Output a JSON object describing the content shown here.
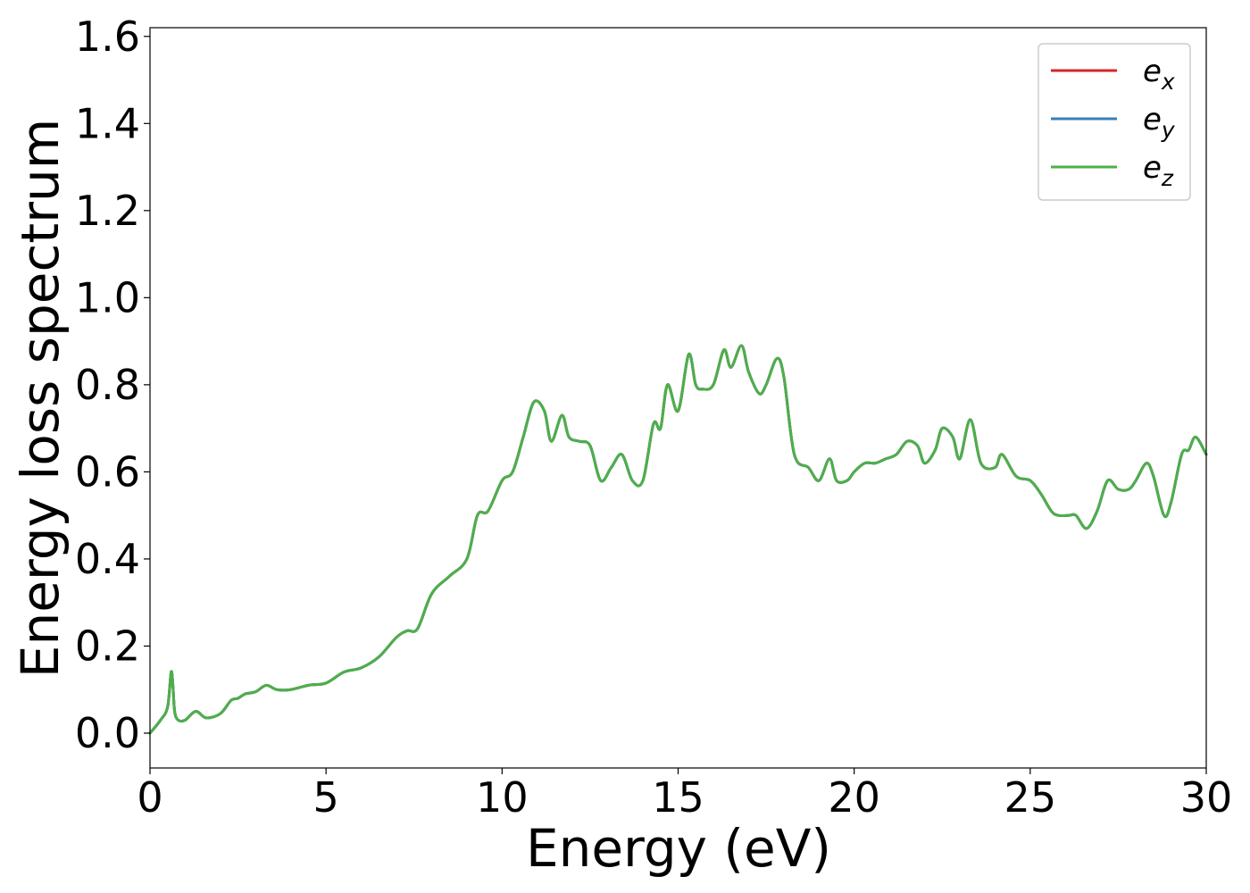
{
  "chart_data": {
    "type": "line",
    "title": "",
    "xlabel": "Energy (eV)",
    "ylabel": "Energy loss spectrum",
    "xlim": [
      0,
      30
    ],
    "ylim": [
      -0.08,
      1.62
    ],
    "xticks": [
      0,
      5,
      10,
      15,
      20,
      25,
      30
    ],
    "xtick_labels": [
      "0",
      "5",
      "10",
      "15",
      "20",
      "25",
      "30"
    ],
    "yticks": [
      0.0,
      0.2,
      0.4,
      0.6,
      0.8,
      1.0,
      1.2,
      1.4,
      1.6
    ],
    "ytick_labels": [
      "0.0",
      "0.2",
      "0.4",
      "0.6",
      "0.8",
      "1.0",
      "1.2",
      "1.4",
      "1.6"
    ],
    "grid": false,
    "legend_position": "top-right",
    "x": [
      0,
      0.3,
      0.5,
      0.6,
      0.65,
      0.7,
      0.8,
      1.0,
      1.3,
      1.6,
      2.0,
      2.3,
      2.5,
      2.7,
      3.0,
      3.3,
      3.6,
      4.0,
      4.5,
      5.0,
      5.5,
      6.0,
      6.5,
      7.0,
      7.3,
      7.6,
      8.0,
      8.5,
      9.0,
      9.3,
      9.6,
      10.0,
      10.3,
      10.6,
      10.9,
      11.2,
      11.4,
      11.7,
      11.9,
      12.2,
      12.5,
      12.8,
      13.1,
      13.4,
      13.7,
      14.0,
      14.3,
      14.5,
      14.7,
      15.0,
      15.3,
      15.5,
      15.7,
      16.0,
      16.3,
      16.5,
      16.8,
      17.0,
      17.3,
      17.5,
      17.8,
      18.0,
      18.3,
      18.7,
      19.0,
      19.3,
      19.5,
      19.8,
      20.0,
      20.3,
      20.6,
      20.9,
      21.2,
      21.5,
      21.8,
      22.0,
      22.3,
      22.5,
      22.8,
      23.0,
      23.3,
      23.6,
      24.0,
      24.2,
      24.6,
      25.0,
      25.3,
      25.6,
      25.8,
      26.1,
      26.3,
      26.6,
      26.9,
      27.2,
      27.5,
      27.8,
      28.0,
      28.3,
      28.5,
      28.8,
      29.0,
      29.3,
      29.5,
      29.7,
      30.0
    ],
    "series": [
      {
        "name": "e_x",
        "color": "#d62728",
        "values": [
          0.0,
          0.03,
          0.06,
          0.14,
          0.11,
          0.05,
          0.03,
          0.03,
          0.05,
          0.035,
          0.045,
          0.075,
          0.08,
          0.09,
          0.095,
          0.11,
          0.1,
          0.1,
          0.11,
          0.115,
          0.14,
          0.15,
          0.175,
          0.22,
          0.235,
          0.24,
          0.32,
          0.36,
          0.4,
          0.5,
          0.51,
          0.58,
          0.6,
          0.68,
          0.76,
          0.74,
          0.67,
          0.73,
          0.68,
          0.67,
          0.66,
          0.58,
          0.61,
          0.64,
          0.58,
          0.58,
          0.71,
          0.7,
          0.8,
          0.74,
          0.87,
          0.8,
          0.79,
          0.8,
          0.88,
          0.84,
          0.89,
          0.83,
          0.78,
          0.8,
          0.86,
          0.82,
          0.64,
          0.61,
          0.58,
          0.63,
          0.58,
          0.58,
          0.6,
          0.62,
          0.62,
          0.63,
          0.64,
          0.67,
          0.66,
          0.62,
          0.65,
          0.7,
          0.68,
          0.63,
          0.72,
          0.62,
          0.61,
          0.64,
          0.59,
          0.58,
          0.55,
          0.51,
          0.5,
          0.5,
          0.5,
          0.47,
          0.51,
          0.58,
          0.56,
          0.56,
          0.58,
          0.62,
          0.59,
          0.5,
          0.53,
          0.64,
          0.65,
          0.68,
          0.64
        ]
      },
      {
        "name": "e_y",
        "color": "#377eb8",
        "values": [
          0.0,
          0.03,
          0.06,
          0.14,
          0.11,
          0.05,
          0.03,
          0.03,
          0.05,
          0.035,
          0.045,
          0.075,
          0.08,
          0.09,
          0.095,
          0.11,
          0.1,
          0.1,
          0.11,
          0.115,
          0.14,
          0.15,
          0.175,
          0.22,
          0.235,
          0.24,
          0.32,
          0.36,
          0.4,
          0.5,
          0.51,
          0.58,
          0.6,
          0.68,
          0.76,
          0.74,
          0.67,
          0.73,
          0.68,
          0.67,
          0.66,
          0.58,
          0.61,
          0.64,
          0.58,
          0.58,
          0.71,
          0.7,
          0.8,
          0.74,
          0.87,
          0.8,
          0.79,
          0.8,
          0.88,
          0.84,
          0.89,
          0.83,
          0.78,
          0.8,
          0.86,
          0.82,
          0.64,
          0.61,
          0.58,
          0.63,
          0.58,
          0.58,
          0.6,
          0.62,
          0.62,
          0.63,
          0.64,
          0.67,
          0.66,
          0.62,
          0.65,
          0.7,
          0.68,
          0.63,
          0.72,
          0.62,
          0.61,
          0.64,
          0.59,
          0.58,
          0.55,
          0.51,
          0.5,
          0.5,
          0.5,
          0.47,
          0.51,
          0.58,
          0.56,
          0.56,
          0.58,
          0.62,
          0.59,
          0.5,
          0.53,
          0.64,
          0.65,
          0.68,
          0.64
        ]
      },
      {
        "name": "e_z",
        "color": "#4daf4a",
        "values": [
          0.0,
          0.03,
          0.06,
          0.14,
          0.11,
          0.05,
          0.03,
          0.03,
          0.05,
          0.035,
          0.045,
          0.075,
          0.08,
          0.09,
          0.095,
          0.11,
          0.1,
          0.1,
          0.11,
          0.115,
          0.14,
          0.15,
          0.175,
          0.22,
          0.235,
          0.24,
          0.32,
          0.36,
          0.4,
          0.5,
          0.51,
          0.58,
          0.6,
          0.68,
          0.76,
          0.74,
          0.67,
          0.73,
          0.68,
          0.67,
          0.66,
          0.58,
          0.61,
          0.64,
          0.58,
          0.58,
          0.71,
          0.7,
          0.8,
          0.74,
          0.87,
          0.8,
          0.79,
          0.8,
          0.88,
          0.84,
          0.89,
          0.83,
          0.78,
          0.8,
          0.86,
          0.82,
          0.64,
          0.61,
          0.58,
          0.63,
          0.58,
          0.58,
          0.6,
          0.62,
          0.62,
          0.63,
          0.64,
          0.67,
          0.66,
          0.62,
          0.65,
          0.7,
          0.68,
          0.63,
          0.72,
          0.62,
          0.61,
          0.64,
          0.59,
          0.58,
          0.55,
          0.51,
          0.5,
          0.5,
          0.5,
          0.47,
          0.51,
          0.58,
          0.56,
          0.56,
          0.58,
          0.62,
          0.59,
          0.5,
          0.53,
          0.64,
          0.65,
          0.68,
          0.64
        ]
      }
    ],
    "legend": [
      {
        "base": "e",
        "sub": "x",
        "color": "#d62728"
      },
      {
        "base": "e",
        "sub": "y",
        "color": "#377eb8"
      },
      {
        "base": "e",
        "sub": "z",
        "color": "#4daf4a"
      }
    ]
  }
}
